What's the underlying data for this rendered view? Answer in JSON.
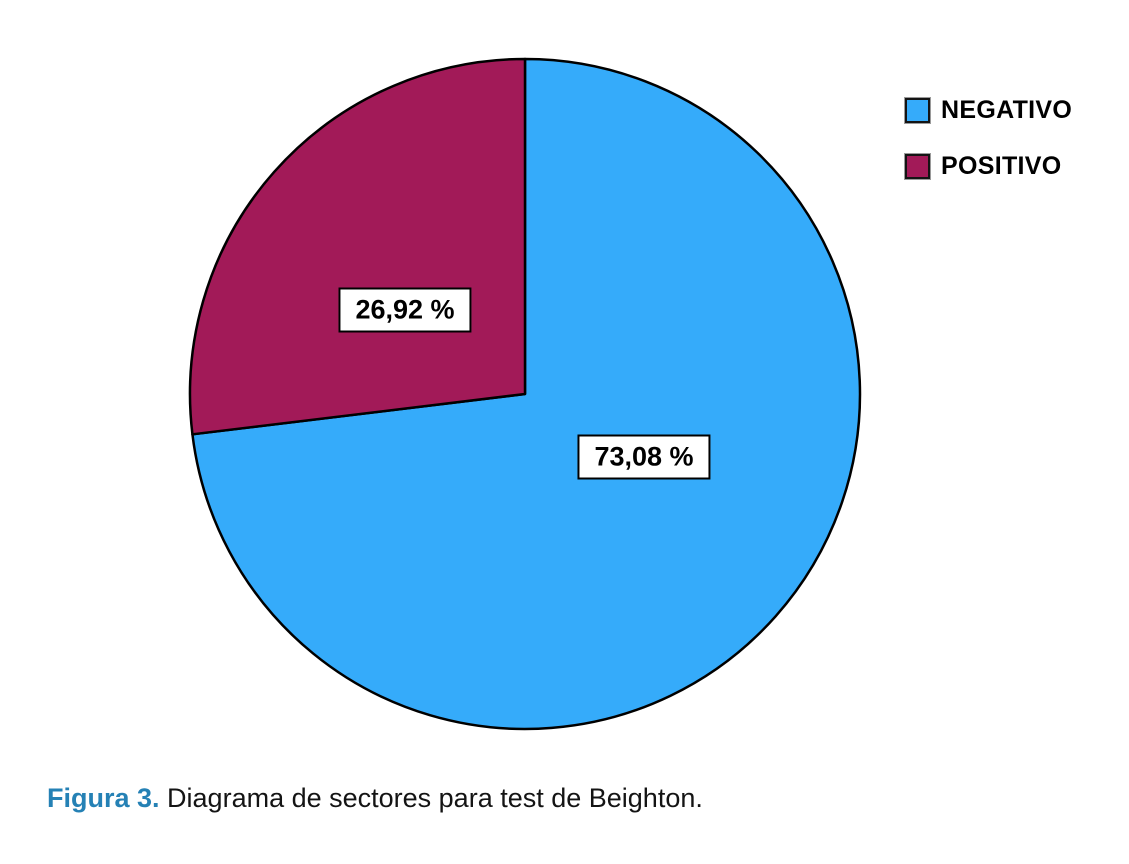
{
  "colors": {
    "negativo_slice": "#35ABFA",
    "positivo_slice": "#A21A58",
    "slice_stroke": "#000000",
    "caption_accent": "#2581B5",
    "background": "#FFFFFF",
    "text": "#000000"
  },
  "chart_data": {
    "type": "pie",
    "categories": [
      "NEGATIVO",
      "POSITIVO"
    ],
    "values": [
      73.08,
      26.92
    ],
    "value_labels": [
      "73,08 %",
      "26,92 %"
    ],
    "colors": [
      "#35ABFA",
      "#A21A58"
    ],
    "start_angle_deg": 0,
    "direction": "clockwise",
    "legend_position": "top-right",
    "title": "",
    "caption": "Figura 3. Diagrama de sectores para test de Beighton."
  },
  "legend": {
    "items": [
      {
        "label": "NEGATIVO",
        "color": "#35ABFA"
      },
      {
        "label": "POSITIVO",
        "color": "#A21A58"
      }
    ]
  },
  "caption": {
    "prefix": "Figura 3.",
    "text": "Diagrama de sectores para test de Beighton."
  }
}
